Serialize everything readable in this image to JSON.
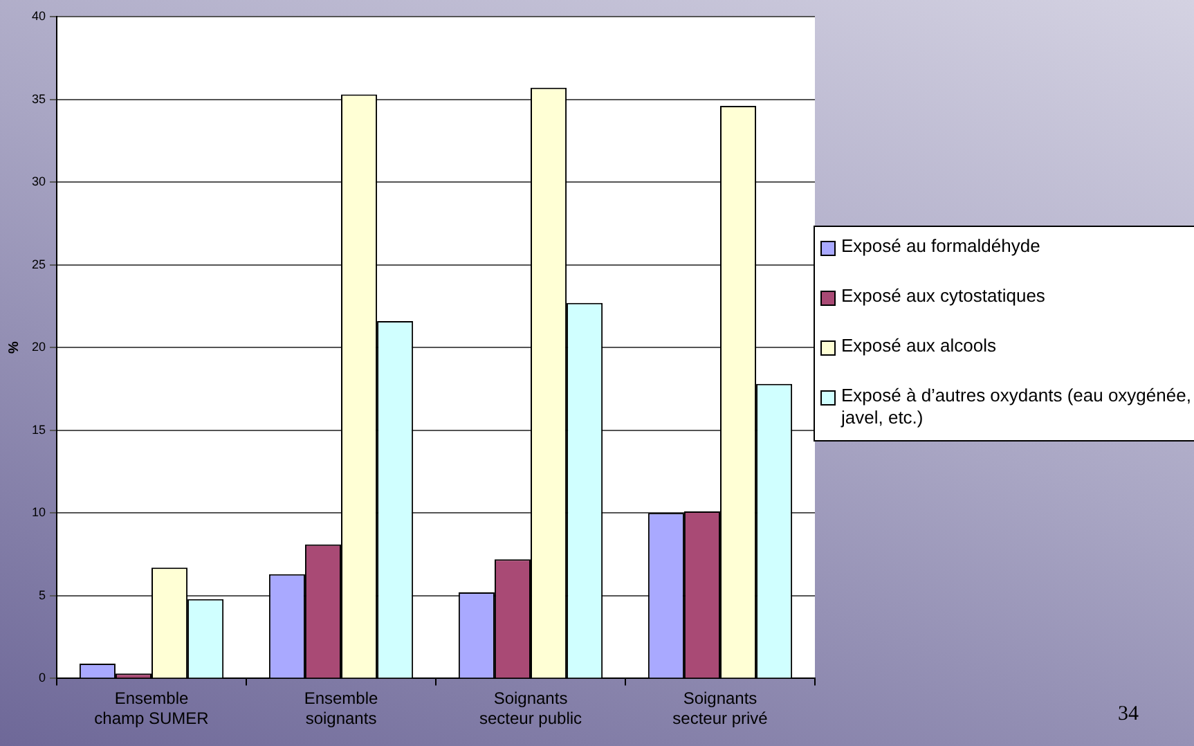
{
  "chart_data": {
    "type": "bar",
    "ylabel": "%",
    "categories": [
      "Ensemble champ SUMER",
      "Ensemble soignants",
      "Soignants secteur public",
      "Soignants secteur privé"
    ],
    "series": [
      {
        "name": "Exposé au formaldéhyde",
        "color": "#a9a9ff",
        "values": [
          0.9,
          6.3,
          5.2,
          10.0
        ]
      },
      {
        "name": "Exposé aux cytostatiques",
        "color": "#a94a75",
        "values": [
          0.3,
          8.1,
          7.2,
          10.1
        ]
      },
      {
        "name": "Exposé aux alcools",
        "color": "#ffffd5",
        "values": [
          6.7,
          35.3,
          35.7,
          34.6
        ]
      },
      {
        "name": "Exposé à d’autres oxydants (eau oxygénée, javel, etc.)",
        "color": "#d0ffff",
        "values": [
          4.8,
          21.6,
          22.7,
          17.8
        ]
      }
    ],
    "ylim": [
      0,
      40
    ],
    "yticks": [
      0,
      5,
      10,
      15,
      20,
      25,
      30,
      35,
      40
    ],
    "grid": "y",
    "legend": "right",
    "annotations": [
      "34"
    ]
  }
}
